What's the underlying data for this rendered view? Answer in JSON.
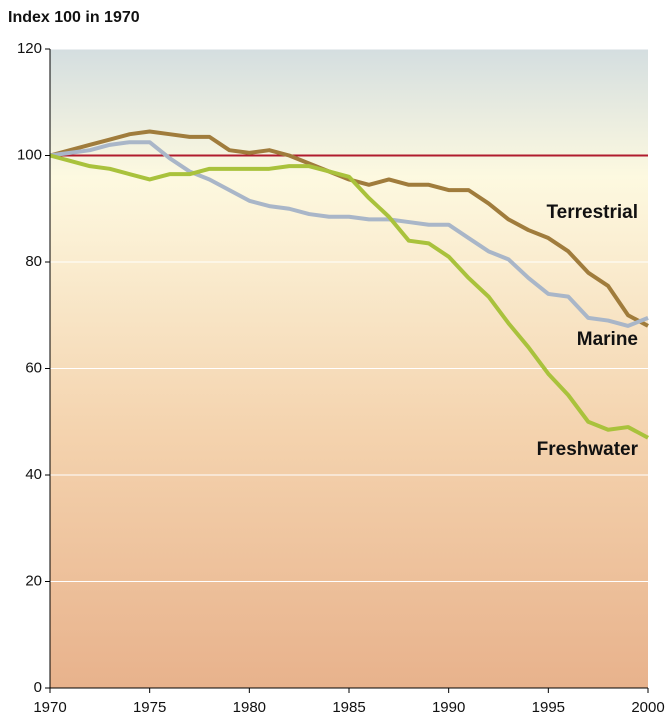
{
  "chart_data": {
    "type": "line",
    "title": "Index 100 in 1970",
    "x": [
      1970,
      1971,
      1972,
      1973,
      1974,
      1975,
      1976,
      1977,
      1978,
      1979,
      1980,
      1981,
      1982,
      1983,
      1984,
      1985,
      1986,
      1987,
      1988,
      1989,
      1990,
      1991,
      1992,
      1993,
      1994,
      1995,
      1996,
      1997,
      1998,
      1999,
      2000
    ],
    "series": [
      {
        "name": "Terrestrial",
        "color": "#a07c3c",
        "values": [
          100,
          101,
          102,
          103,
          104,
          104.5,
          104,
          103.5,
          103.5,
          101,
          100.5,
          101,
          100,
          98.5,
          97,
          95.5,
          94.5,
          95.5,
          94.5,
          94.5,
          93.5,
          93.5,
          91,
          88,
          86,
          84.5,
          82,
          78,
          75.5,
          70,
          68
        ]
      },
      {
        "name": "Marine",
        "color": "#a9b6c8",
        "values": [
          100,
          100.5,
          101,
          102,
          102.5,
          102.5,
          99.5,
          97,
          95.5,
          93.5,
          91.5,
          90.5,
          90,
          89,
          88.5,
          88.5,
          88,
          88,
          87.5,
          87,
          87,
          84.5,
          82,
          80.5,
          77,
          74,
          73.5,
          69.5,
          69,
          68,
          69.5
        ]
      },
      {
        "name": "Freshwater",
        "color": "#a9c23c",
        "values": [
          100,
          99,
          98,
          97.5,
          96.5,
          95.5,
          96.5,
          96.5,
          97.5,
          97.5,
          97.5,
          97.5,
          98,
          98,
          97,
          96,
          92,
          88.5,
          84,
          83.5,
          81,
          77,
          73.5,
          68.5,
          64,
          59,
          55,
          50,
          48.5,
          49,
          47
        ]
      }
    ],
    "xlim": [
      1970,
      2000
    ],
    "xticks": [
      1970,
      1975,
      1980,
      1985,
      1990,
      1995,
      2000
    ],
    "ylim": [
      0,
      120
    ],
    "yticks": [
      0,
      20,
      40,
      60,
      80,
      100,
      120
    ],
    "grid": true,
    "reference_line": {
      "value": 100,
      "color": "#b01c2e"
    }
  }
}
